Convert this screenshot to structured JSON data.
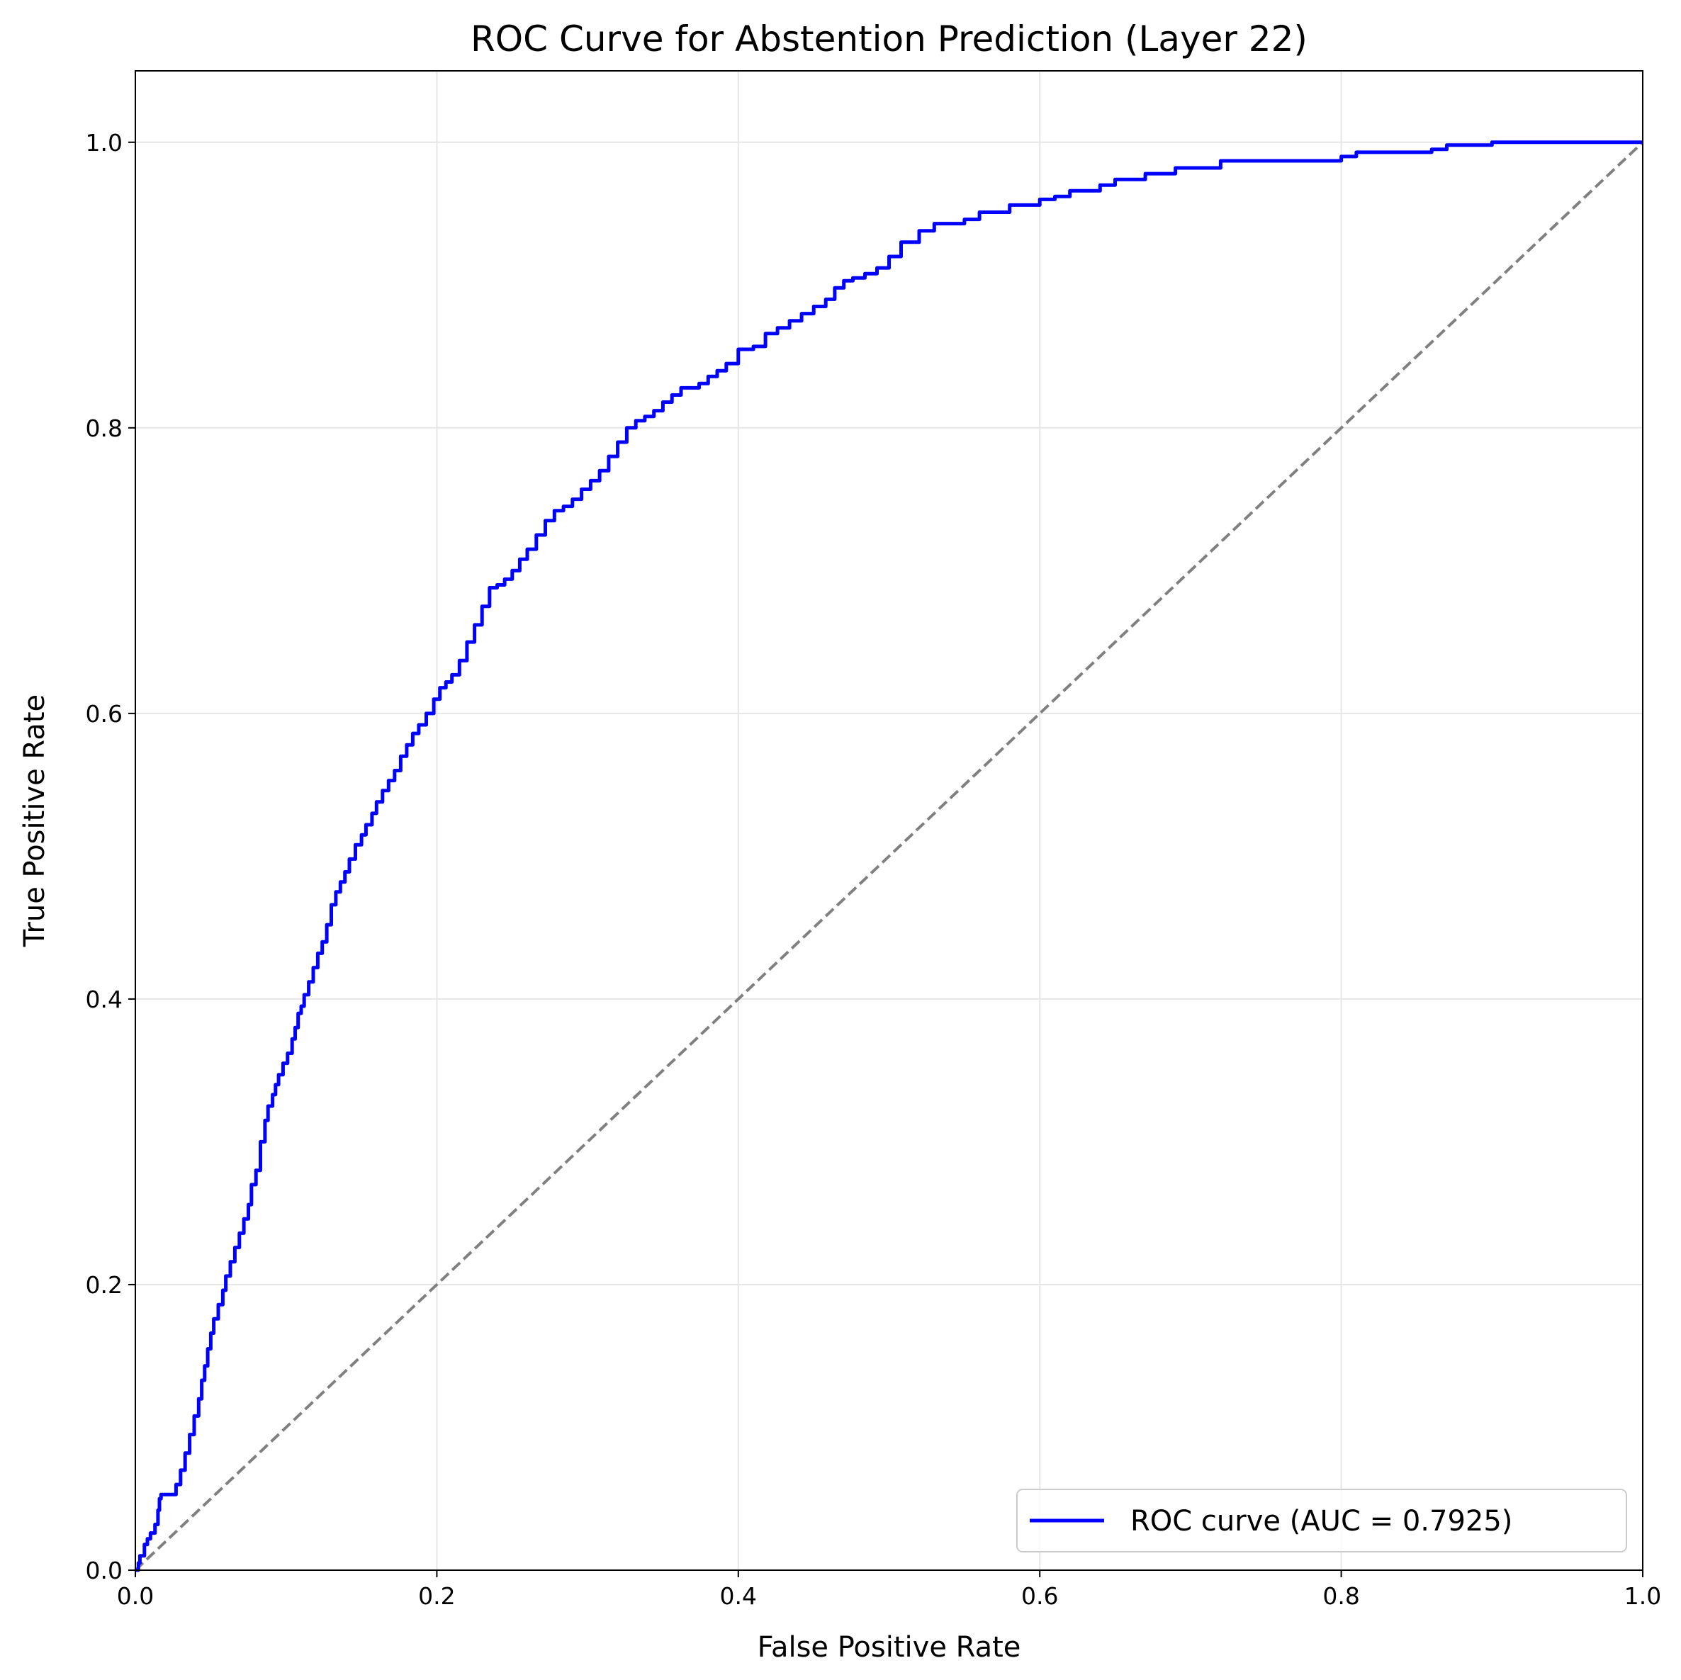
{
  "chart_data": {
    "type": "line",
    "title": "ROC Curve for Abstention Prediction (Layer 22)",
    "xlabel": "False Positive Rate",
    "ylabel": "True Positive Rate",
    "xlim": [
      0.0,
      1.0
    ],
    "ylim": [
      0.0,
      1.05
    ],
    "grid": true,
    "legend_position": "lower-right",
    "x_ticks": [
      "0.0",
      "0.2",
      "0.4",
      "0.6",
      "0.8",
      "1.0"
    ],
    "y_ticks": [
      "0.0",
      "0.2",
      "0.4",
      "0.6",
      "0.8",
      "1.0"
    ],
    "series": [
      {
        "name": "ROC curve (AUC = 0.7925)",
        "color": "#0000ff",
        "style": "solid-step",
        "x": [
          0.0,
          0.002,
          0.003,
          0.006,
          0.008,
          0.01,
          0.013,
          0.015,
          0.016,
          0.017,
          0.025,
          0.027,
          0.03,
          0.033,
          0.036,
          0.039,
          0.042,
          0.044,
          0.046,
          0.048,
          0.05,
          0.052,
          0.055,
          0.058,
          0.06,
          0.063,
          0.066,
          0.069,
          0.072,
          0.075,
          0.077,
          0.08,
          0.083,
          0.086,
          0.088,
          0.091,
          0.093,
          0.095,
          0.098,
          0.101,
          0.104,
          0.106,
          0.108,
          0.11,
          0.112,
          0.115,
          0.118,
          0.121,
          0.124,
          0.127,
          0.13,
          0.133,
          0.136,
          0.139,
          0.142,
          0.146,
          0.15,
          0.153,
          0.157,
          0.16,
          0.164,
          0.168,
          0.172,
          0.176,
          0.18,
          0.184,
          0.188,
          0.193,
          0.198,
          0.202,
          0.206,
          0.21,
          0.215,
          0.22,
          0.225,
          0.23,
          0.235,
          0.24,
          0.245,
          0.25,
          0.255,
          0.26,
          0.266,
          0.272,
          0.278,
          0.284,
          0.29,
          0.296,
          0.302,
          0.308,
          0.314,
          0.32,
          0.326,
          0.332,
          0.338,
          0.344,
          0.35,
          0.356,
          0.362,
          0.368,
          0.374,
          0.38,
          0.386,
          0.392,
          0.4,
          0.41,
          0.418,
          0.426,
          0.434,
          0.442,
          0.45,
          0.458,
          0.464,
          0.47,
          0.476,
          0.484,
          0.492,
          0.5,
          0.508,
          0.52,
          0.53,
          0.55,
          0.56,
          0.58,
          0.6,
          0.61,
          0.62,
          0.64,
          0.65,
          0.67,
          0.69,
          0.72,
          0.79,
          0.8,
          0.81,
          0.86,
          0.87,
          0.9,
          1.0
        ],
        "y": [
          0.0,
          0.005,
          0.01,
          0.018,
          0.022,
          0.026,
          0.032,
          0.042,
          0.05,
          0.053,
          0.053,
          0.06,
          0.07,
          0.082,
          0.095,
          0.108,
          0.12,
          0.133,
          0.143,
          0.155,
          0.166,
          0.176,
          0.186,
          0.196,
          0.206,
          0.216,
          0.226,
          0.236,
          0.246,
          0.256,
          0.27,
          0.28,
          0.3,
          0.315,
          0.325,
          0.333,
          0.34,
          0.347,
          0.355,
          0.362,
          0.372,
          0.38,
          0.39,
          0.395,
          0.403,
          0.412,
          0.422,
          0.432,
          0.44,
          0.452,
          0.466,
          0.475,
          0.482,
          0.489,
          0.498,
          0.508,
          0.515,
          0.522,
          0.53,
          0.538,
          0.546,
          0.553,
          0.56,
          0.57,
          0.578,
          0.586,
          0.592,
          0.6,
          0.61,
          0.618,
          0.622,
          0.627,
          0.637,
          0.65,
          0.662,
          0.675,
          0.688,
          0.69,
          0.694,
          0.7,
          0.708,
          0.715,
          0.725,
          0.735,
          0.742,
          0.745,
          0.75,
          0.757,
          0.763,
          0.77,
          0.78,
          0.79,
          0.8,
          0.805,
          0.808,
          0.812,
          0.818,
          0.823,
          0.828,
          0.828,
          0.831,
          0.836,
          0.84,
          0.845,
          0.855,
          0.857,
          0.866,
          0.87,
          0.875,
          0.88,
          0.885,
          0.89,
          0.898,
          0.903,
          0.905,
          0.908,
          0.912,
          0.92,
          0.93,
          0.938,
          0.943,
          0.946,
          0.951,
          0.956,
          0.96,
          0.962,
          0.966,
          0.97,
          0.974,
          0.978,
          0.982,
          0.987,
          0.987,
          0.99,
          0.993,
          0.995,
          0.998,
          1.0,
          1.0
        ]
      },
      {
        "name": "",
        "color": "#808080",
        "style": "dashed",
        "x": [
          0.0,
          1.0
        ],
        "y": [
          0.0,
          1.0
        ]
      }
    ]
  }
}
